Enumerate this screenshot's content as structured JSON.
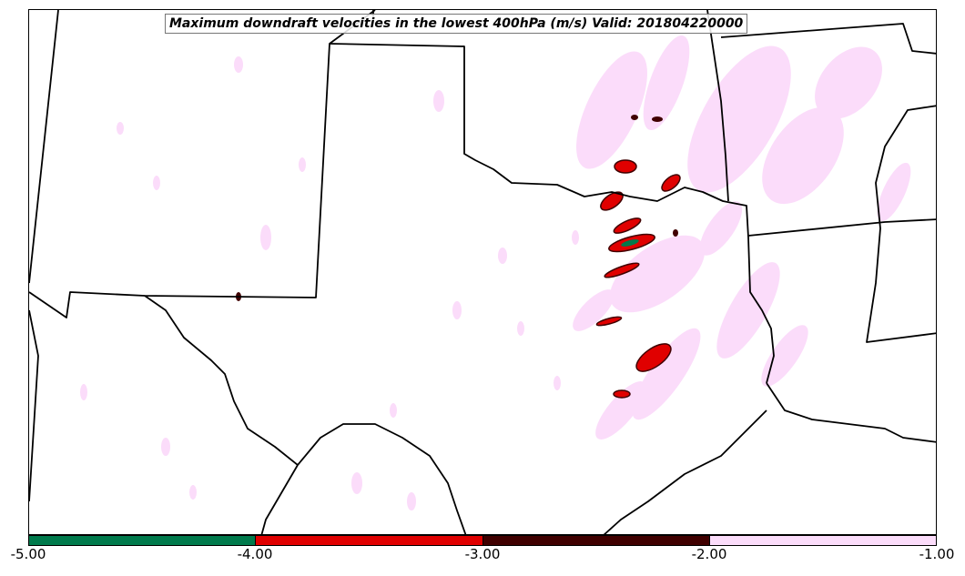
{
  "title": "Maximum downdraft velocities in the lowest 400hPa (m/s) Valid: 201804220000",
  "legend": {
    "ticks": [
      "-5.00",
      "-4.00",
      "-3.00",
      "-2.00",
      "-1.00"
    ],
    "bins": [
      {
        "range": [
          -5.0,
          -4.0
        ],
        "color": "#007a4c"
      },
      {
        "range": [
          -4.0,
          -3.0
        ],
        "color": "#e00000"
      },
      {
        "range": [
          -3.0,
          -2.0
        ],
        "color": "#400000"
      },
      {
        "range": [
          -2.0,
          -1.0
        ],
        "color": "#fbdcfa"
      }
    ]
  },
  "map": {
    "region": "Southern Plains / Texas",
    "boundary_color": "#000000",
    "field_colors": {
      "weak": "#fbdcfa",
      "moderate": "#400000",
      "strong": "#e00000",
      "extreme": "#007a4c"
    }
  }
}
